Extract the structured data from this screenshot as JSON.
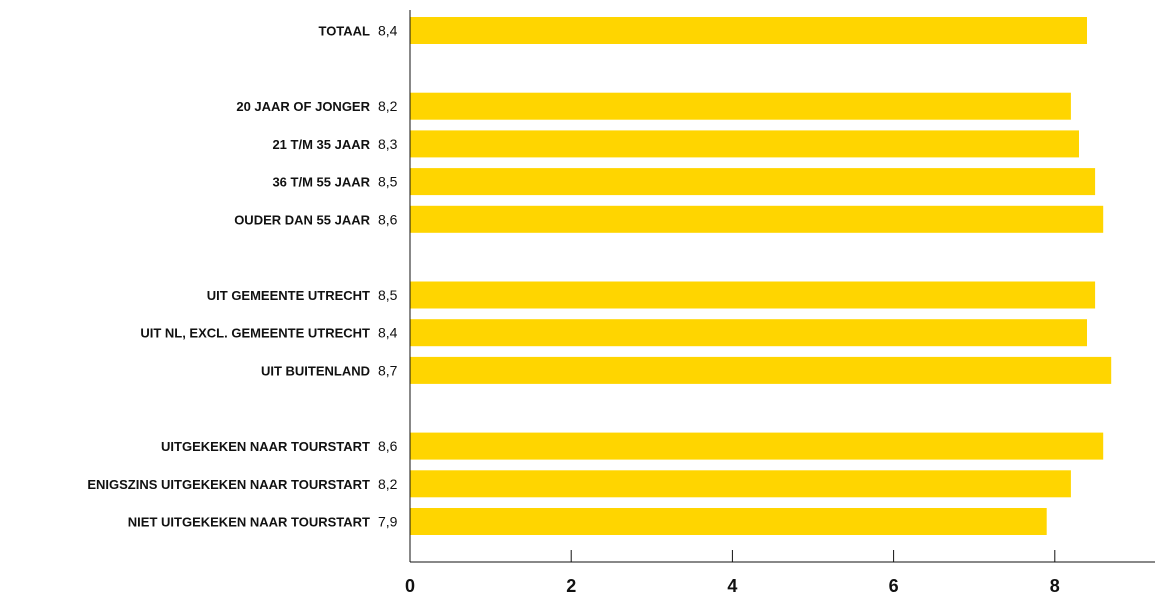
{
  "chart_data": {
    "type": "bar",
    "orientation": "horizontal",
    "title": "",
    "xlabel": "",
    "ylabel": "",
    "xlim": [
      0,
      9.5
    ],
    "x_ticks": [
      "0",
      "2",
      "4",
      "6",
      "8"
    ],
    "grid": false,
    "bar_color": "#FFD500",
    "groups": [
      {
        "items": [
          {
            "category": "TOTAAL",
            "value": 8.4,
            "value_label": "8,4"
          }
        ]
      },
      {
        "items": [
          {
            "category": "20 JAAR OF JONGER",
            "value": 8.2,
            "value_label": "8,2"
          },
          {
            "category": "21 T/M 35 JAAR",
            "value": 8.3,
            "value_label": "8,3"
          },
          {
            "category": "36 T/M 55 JAAR",
            "value": 8.5,
            "value_label": "8,5"
          },
          {
            "category": "OUDER DAN 55 JAAR",
            "value": 8.6,
            "value_label": "8,6"
          }
        ]
      },
      {
        "items": [
          {
            "category": "UIT GEMEENTE UTRECHT",
            "value": 8.5,
            "value_label": "8,5"
          },
          {
            "category": "UIT NL, EXCL. GEMEENTE UTRECHT",
            "value": 8.4,
            "value_label": "8,4"
          },
          {
            "category": "UIT BUITENLAND",
            "value": 8.7,
            "value_label": "8,7"
          }
        ]
      },
      {
        "items": [
          {
            "category": "UITGEKEKEN NAAR TOURSTART",
            "value": 8.6,
            "value_label": "8,6"
          },
          {
            "category": "ENIGSZINS UITGEKEKEN NAAR TOURSTART",
            "value": 8.2,
            "value_label": "8,2"
          },
          {
            "category": "NIET UITGEKEKEN NAAR TOURSTART",
            "value": 7.9,
            "value_label": "7,9"
          }
        ]
      }
    ]
  }
}
